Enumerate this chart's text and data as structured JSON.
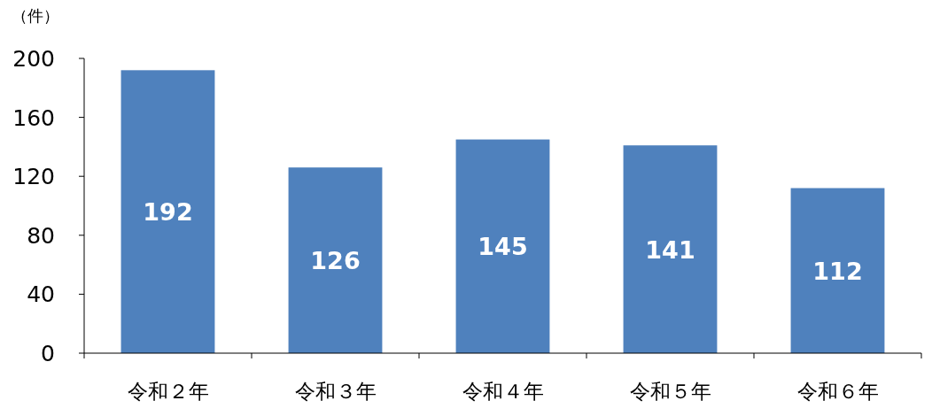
{
  "chart_data": {
    "type": "bar",
    "ylabel": "（件）",
    "categories": [
      "令和２年",
      "令和３年",
      "令和４年",
      "令和５年",
      "令和６年"
    ],
    "values": [
      192,
      126,
      145,
      141,
      112
    ],
    "color": "#4f81bd",
    "ylim": [
      0,
      200
    ],
    "yticks": [
      0,
      40,
      80,
      120,
      160,
      200
    ],
    "grid": false,
    "data_labels": true
  }
}
